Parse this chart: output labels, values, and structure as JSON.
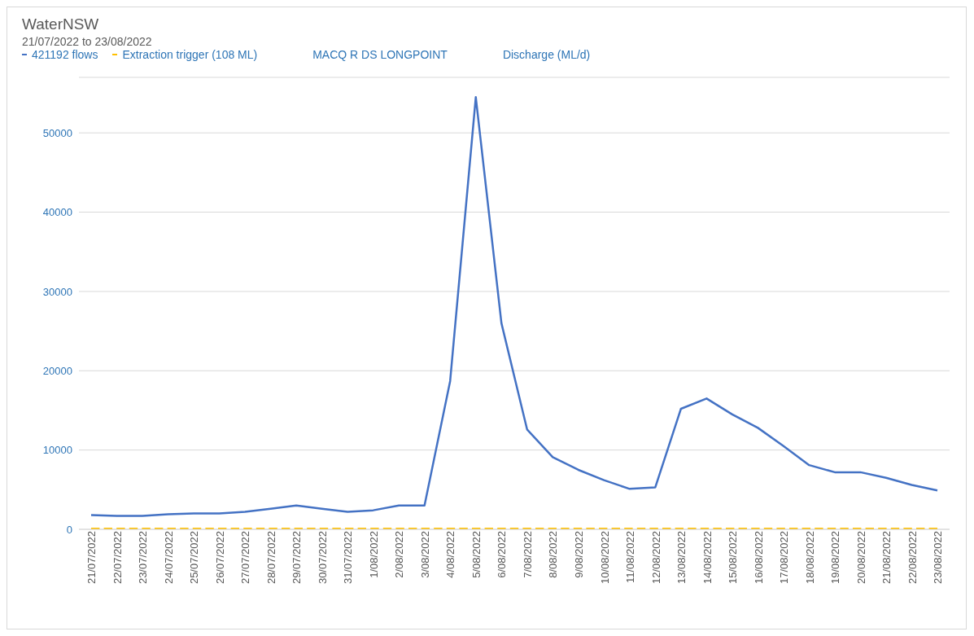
{
  "chart_data": {
    "type": "line",
    "title": "WaterNSW",
    "subtitle": "21/07/2022 to 23/08/2022",
    "annotations": [
      "MACQ R DS LONGPOINT",
      "Discharge (ML/d)"
    ],
    "categories": [
      "21/07/2022",
      "22/07/2022",
      "23/07/2022",
      "24/07/2022",
      "25/07/2022",
      "26/07/2022",
      "27/07/2022",
      "28/07/2022",
      "29/07/2022",
      "30/07/2022",
      "31/07/2022",
      "1/08/2022",
      "2/08/2022",
      "3/08/2022",
      "4/08/2022",
      "5/08/2022",
      "6/08/2022",
      "7/08/2022",
      "8/08/2022",
      "9/08/2022",
      "10/08/2022",
      "11/08/2022",
      "12/08/2022",
      "13/08/2022",
      "14/08/2022",
      "15/08/2022",
      "16/08/2022",
      "17/08/2022",
      "18/08/2022",
      "19/08/2022",
      "20/08/2022",
      "21/08/2022",
      "22/08/2022",
      "23/08/2022"
    ],
    "series": [
      {
        "name": "421192 flows",
        "color": "#4472c4",
        "line_style": "solid",
        "values": [
          1800,
          1700,
          1700,
          1900,
          2000,
          2000,
          2200,
          2600,
          3000,
          2600,
          2200,
          2400,
          3000,
          3000,
          18700,
          54500,
          26000,
          12600,
          9100,
          7500,
          6200,
          5100,
          5300,
          15200,
          16500,
          14500,
          12800,
          10500,
          8100,
          7200,
          7200,
          6500,
          5600,
          4900
        ]
      },
      {
        "name": "Extraction trigger (108 ML)",
        "color": "#ffc000",
        "line_style": "dashed",
        "values": [
          108,
          108,
          108,
          108,
          108,
          108,
          108,
          108,
          108,
          108,
          108,
          108,
          108,
          108,
          108,
          108,
          108,
          108,
          108,
          108,
          108,
          108,
          108,
          108,
          108,
          108,
          108,
          108,
          108,
          108,
          108,
          108,
          108,
          108
        ]
      }
    ],
    "ylim": [
      0,
      57000
    ],
    "yticks": [
      0,
      10000,
      20000,
      30000,
      40000,
      50000
    ],
    "grid": "y",
    "legend": "top left",
    "marker": "none"
  }
}
